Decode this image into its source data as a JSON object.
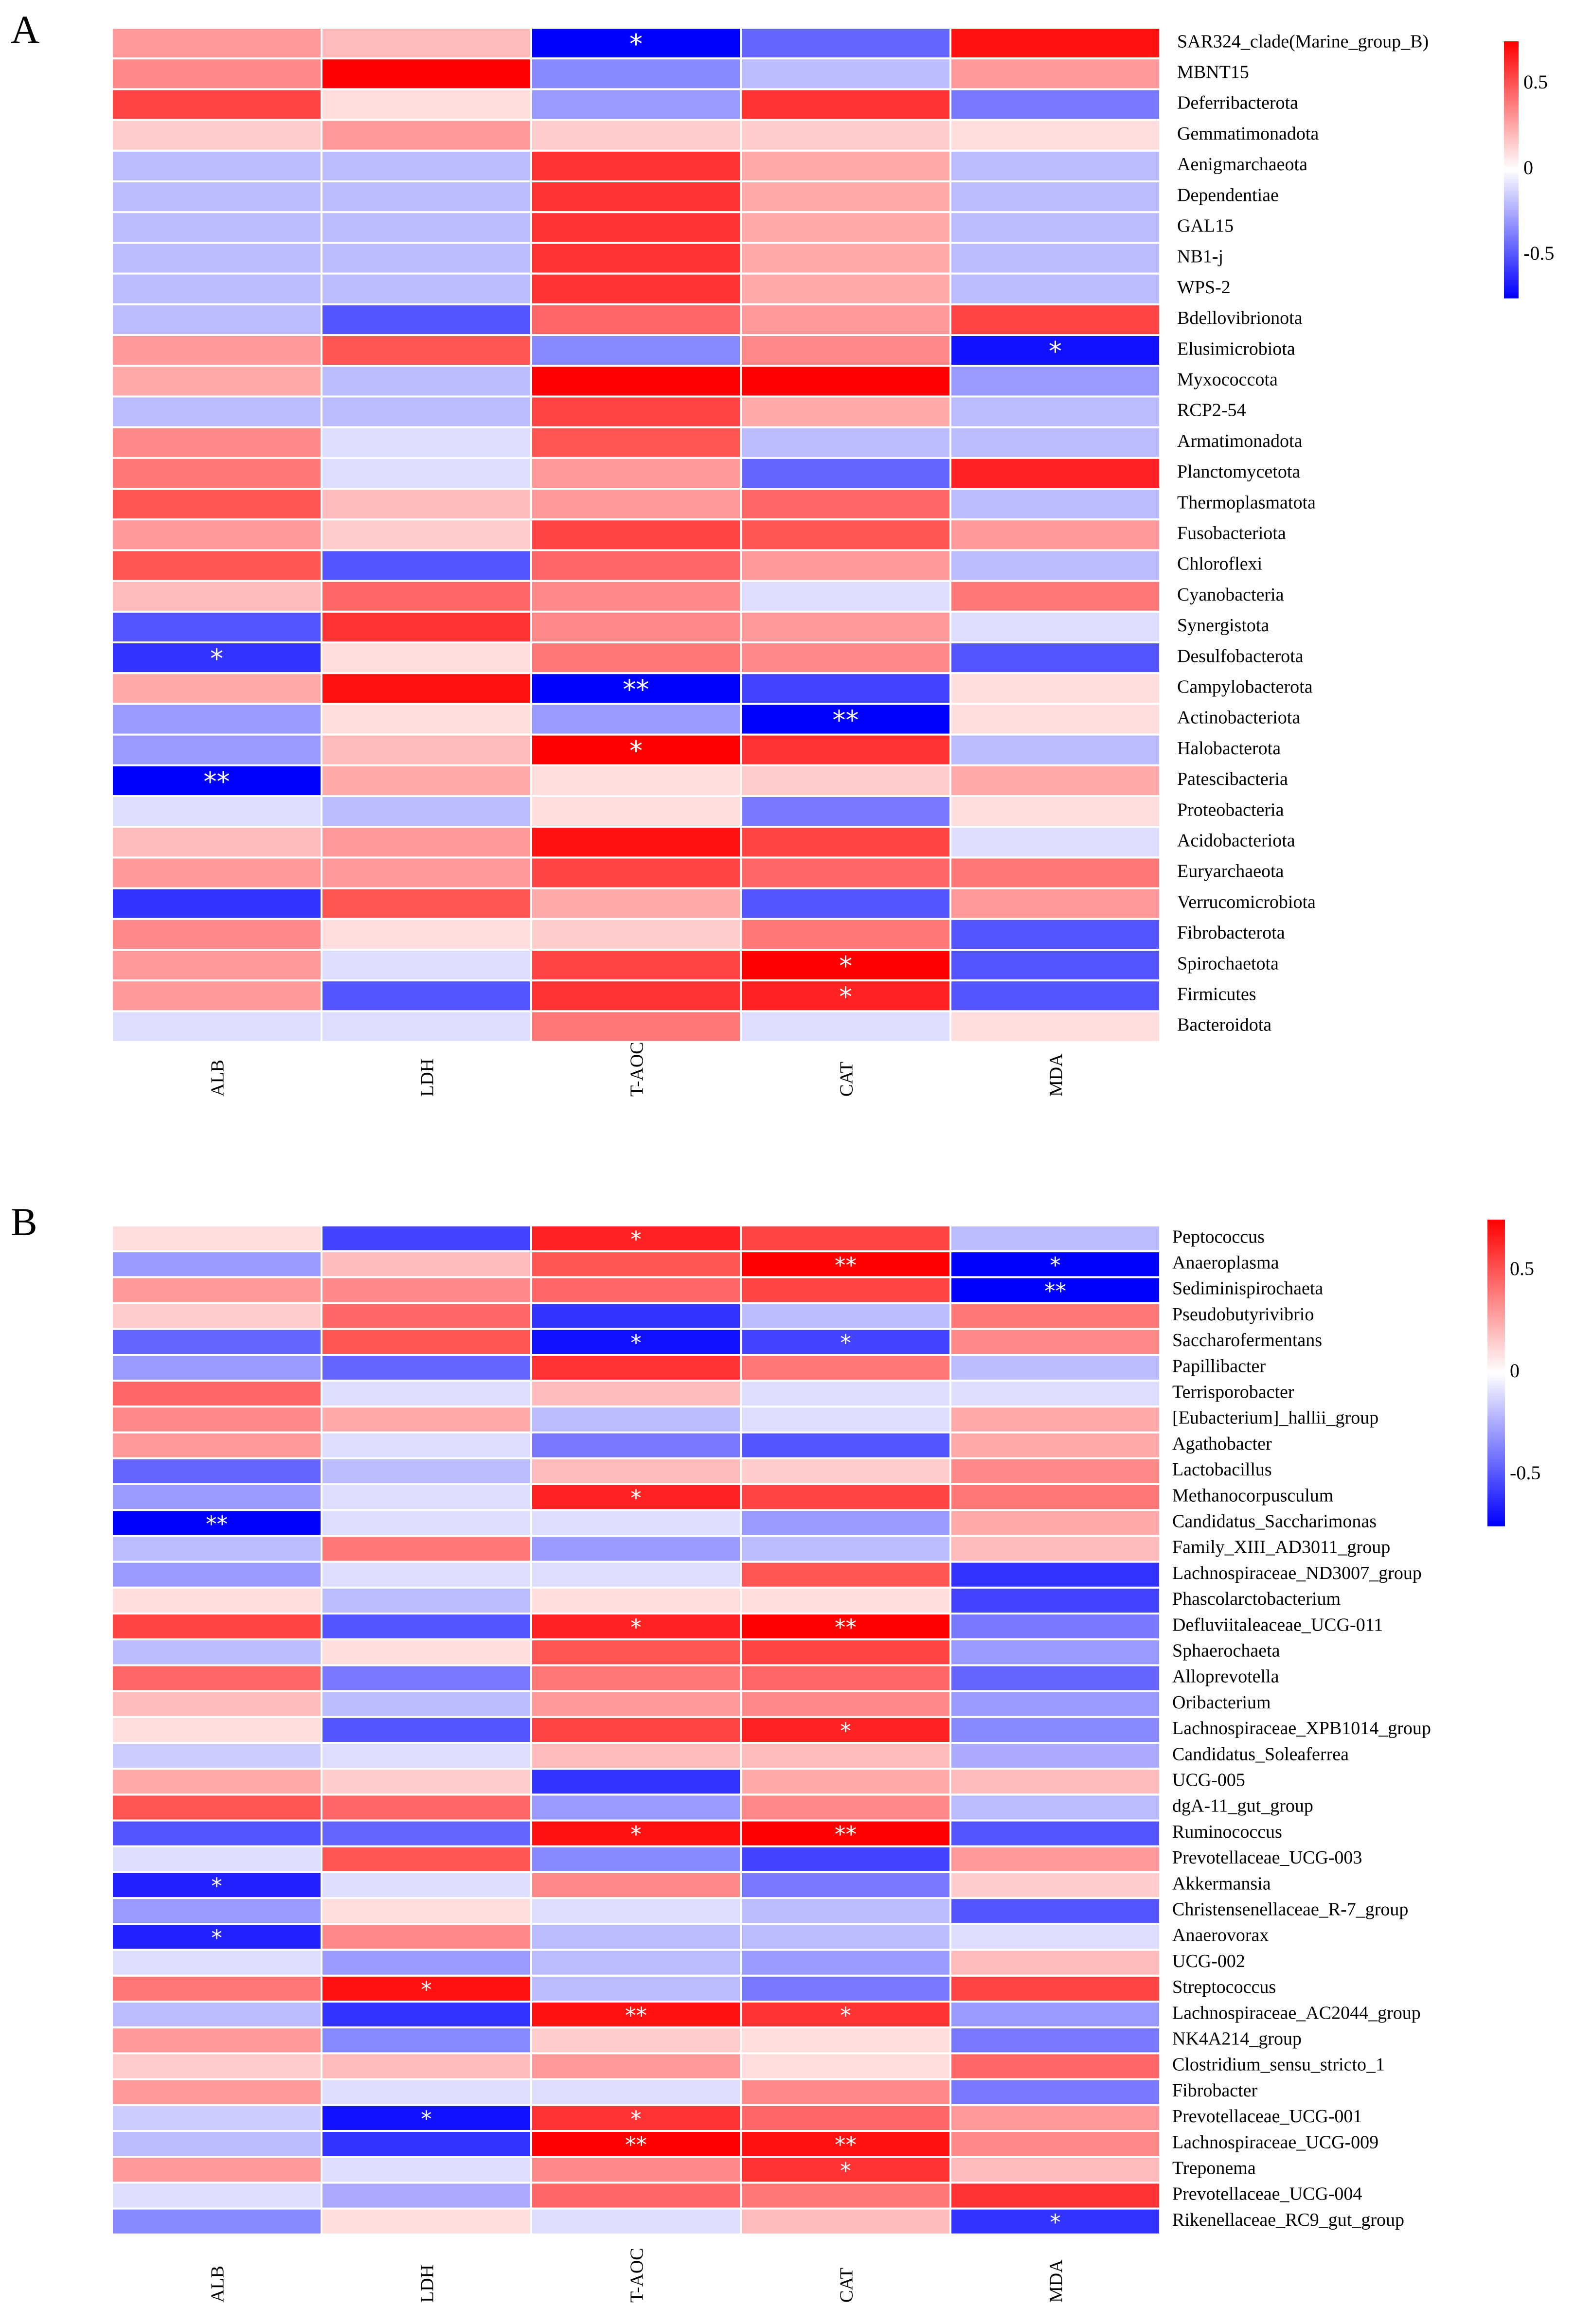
{
  "chart_data": [
    {
      "type": "heatmap",
      "panel": "A",
      "columns": [
        "ALB",
        "LDH",
        "T-AOC",
        "CAT",
        "MDA"
      ],
      "rows": [
        "SAR324_clade(Marine_group_B)",
        "MBNT15",
        "Deferribacterota",
        "Gemmatimonadota",
        "Aenigmarchaeota",
        "Dependentiae",
        "GAL15",
        "NB1-j",
        "WPS-2",
        "Bdellovibrionota",
        "Elusimicrobiota",
        "Myxococcota",
        "RCP2-54",
        "Armatimonadota",
        "Planctomycetota",
        "Thermoplasmatota",
        "Fusobacteriota",
        "Chloroflexi",
        "Cyanobacteria",
        "Synergistota",
        "Desulfobacterota",
        "Campylobacterota",
        "Actinobacteriota",
        "Halobacterota",
        "Patescibacteria",
        "Proteobacteria",
        "Acidobacteriota",
        "Euryarchaeota",
        "Verrucomicrobiota",
        "Fibrobacterota",
        "Spirochaetota",
        "Firmicutes",
        "Bacteroidota"
      ],
      "values": [
        [
          0.3,
          0.2,
          -0.75,
          -0.45,
          0.7
        ],
        [
          0.35,
          0.75,
          -0.35,
          -0.2,
          0.3
        ],
        [
          0.55,
          0.1,
          -0.3,
          0.6,
          -0.4
        ],
        [
          0.15,
          0.3,
          0.15,
          0.15,
          0.1
        ],
        [
          -0.2,
          -0.2,
          0.6,
          0.25,
          -0.2
        ],
        [
          -0.2,
          -0.2,
          0.6,
          0.25,
          -0.2
        ],
        [
          -0.2,
          -0.2,
          0.6,
          0.25,
          -0.2
        ],
        [
          -0.2,
          -0.2,
          0.6,
          0.25,
          -0.2
        ],
        [
          -0.2,
          -0.2,
          0.6,
          0.25,
          -0.2
        ],
        [
          -0.2,
          -0.5,
          0.45,
          0.3,
          0.55
        ],
        [
          0.3,
          0.5,
          -0.35,
          0.35,
          -0.7
        ],
        [
          0.25,
          -0.2,
          0.75,
          0.75,
          -0.3
        ],
        [
          -0.2,
          -0.2,
          0.55,
          0.25,
          -0.2
        ],
        [
          0.35,
          -0.1,
          0.5,
          -0.2,
          -0.2
        ],
        [
          0.4,
          -0.1,
          0.3,
          -0.45,
          0.65
        ],
        [
          0.5,
          0.2,
          0.3,
          0.45,
          -0.2
        ],
        [
          0.3,
          0.15,
          0.55,
          0.5,
          0.3
        ],
        [
          0.5,
          -0.5,
          0.45,
          0.3,
          -0.2
        ],
        [
          0.2,
          0.45,
          0.35,
          -0.1,
          0.4
        ],
        [
          -0.5,
          0.6,
          0.35,
          0.3,
          -0.1
        ],
        [
          -0.6,
          0.1,
          0.4,
          0.35,
          -0.5
        ],
        [
          0.25,
          0.7,
          -0.75,
          -0.55,
          0.1
        ],
        [
          -0.3,
          0.1,
          -0.3,
          -0.75,
          0.1
        ],
        [
          -0.3,
          0.2,
          0.75,
          0.6,
          -0.2
        ],
        [
          -0.75,
          0.25,
          0.1,
          0.15,
          0.25
        ],
        [
          -0.1,
          -0.2,
          0.1,
          -0.4,
          0.1
        ],
        [
          0.2,
          0.3,
          0.7,
          0.55,
          -0.1
        ],
        [
          0.3,
          0.3,
          0.55,
          0.45,
          0.4
        ],
        [
          -0.6,
          0.5,
          0.25,
          -0.5,
          0.3
        ],
        [
          0.35,
          0.1,
          0.15,
          0.4,
          -0.5
        ],
        [
          0.3,
          -0.1,
          0.55,
          0.75,
          -0.5
        ],
        [
          0.3,
          -0.5,
          0.6,
          0.65,
          -0.5
        ],
        [
          -0.1,
          -0.1,
          0.4,
          -0.1,
          0.1
        ]
      ],
      "significance": [
        [
          "",
          "",
          "*",
          "",
          ""
        ],
        [
          "",
          "",
          "",
          "",
          ""
        ],
        [
          "",
          "",
          "",
          "",
          ""
        ],
        [
          "",
          "",
          "",
          "",
          ""
        ],
        [
          "",
          "",
          "",
          "",
          ""
        ],
        [
          "",
          "",
          "",
          "",
          ""
        ],
        [
          "",
          "",
          "",
          "",
          ""
        ],
        [
          "",
          "",
          "",
          "",
          ""
        ],
        [
          "",
          "",
          "",
          "",
          ""
        ],
        [
          "",
          "",
          "",
          "",
          ""
        ],
        [
          "",
          "",
          "",
          "",
          "*"
        ],
        [
          "",
          "",
          "",
          "",
          ""
        ],
        [
          "",
          "",
          "",
          "",
          ""
        ],
        [
          "",
          "",
          "",
          "",
          ""
        ],
        [
          "",
          "",
          "",
          "",
          ""
        ],
        [
          "",
          "",
          "",
          "",
          ""
        ],
        [
          "",
          "",
          "",
          "",
          ""
        ],
        [
          "",
          "",
          "",
          "",
          ""
        ],
        [
          "",
          "",
          "",
          "",
          ""
        ],
        [
          "",
          "",
          "",
          "",
          ""
        ],
        [
          "*",
          "",
          "",
          "",
          ""
        ],
        [
          "",
          "",
          "**",
          "",
          ""
        ],
        [
          "",
          "",
          "",
          "**",
          ""
        ],
        [
          "",
          "",
          "*",
          "",
          ""
        ],
        [
          "**",
          "",
          "",
          "",
          ""
        ],
        [
          "",
          "",
          "",
          "",
          ""
        ],
        [
          "",
          "",
          "",
          "",
          ""
        ],
        [
          "",
          "",
          "",
          "",
          ""
        ],
        [
          "",
          "",
          "",
          "",
          ""
        ],
        [
          "",
          "",
          "",
          "",
          ""
        ],
        [
          "",
          "",
          "",
          "*",
          ""
        ],
        [
          "",
          "",
          "",
          "*",
          ""
        ],
        [
          "",
          "",
          "",
          "",
          ""
        ]
      ],
      "colorbar": {
        "range": [
          -0.75,
          0.75
        ],
        "ticks": [
          "0.5",
          "0",
          "-0.5"
        ],
        "tick_values": [
          0.5,
          0,
          -0.5
        ],
        "colors": [
          "#0000ff",
          "#ffffff",
          "#ff0000"
        ]
      }
    },
    {
      "type": "heatmap",
      "panel": "B",
      "columns": [
        "ALB",
        "LDH",
        "T-AOC",
        "CAT",
        "MDA"
      ],
      "rows": [
        "Peptococcus",
        "Anaeroplasma",
        "Sediminispirochaeta",
        "Pseudobutyrivibrio",
        "Saccharofermentans",
        "Papillibacter",
        "Terrisporobacter",
        "[Eubacterium]_hallii_group",
        "Agathobacter",
        "Lactobacillus",
        "Methanocorpusculum",
        "Candidatus_Saccharimonas",
        "Family_XIII_AD3011_group",
        "Lachnospiraceae_ND3007_group",
        "Phascolarctobacterium",
        "Defluviitaleaceae_UCG-011",
        "Sphaerochaeta",
        "Alloprevotella",
        "Oribacterium",
        "Lachnospiraceae_XPB1014_group",
        "Candidatus_Soleaferrea",
        "UCG-005",
        "dgA-11_gut_group",
        "Ruminococcus",
        "Prevotellaceae_UCG-003",
        "Akkermansia",
        "Christensenellaceae_R-7_group",
        "Anaerovorax",
        "UCG-002",
        "Streptococcus",
        "Lachnospiraceae_AC2044_group",
        "NK4A214_group",
        "Clostridium_sensu_stricto_1",
        "Fibrobacter",
        "Prevotellaceae_UCG-001",
        "Lachnospiraceae_UCG-009",
        "Treponema",
        "Prevotellaceae_UCG-004",
        "Rikenellaceae_RC9_gut_group"
      ],
      "values": [
        [
          0.1,
          -0.55,
          0.65,
          0.55,
          -0.2
        ],
        [
          -0.3,
          0.2,
          0.5,
          0.75,
          -0.75
        ],
        [
          0.3,
          0.35,
          0.45,
          0.55,
          -0.75
        ],
        [
          0.15,
          0.45,
          -0.6,
          -0.2,
          0.4
        ],
        [
          -0.45,
          0.5,
          -0.7,
          -0.55,
          0.35
        ],
        [
          -0.3,
          -0.45,
          0.6,
          0.4,
          -0.2
        ],
        [
          0.45,
          -0.1,
          0.2,
          -0.1,
          -0.1
        ],
        [
          0.35,
          0.25,
          -0.2,
          -0.1,
          0.25
        ],
        [
          0.3,
          -0.1,
          -0.4,
          -0.5,
          0.25
        ],
        [
          -0.45,
          -0.2,
          0.2,
          0.15,
          0.35
        ],
        [
          -0.3,
          -0.1,
          0.65,
          0.55,
          0.4
        ],
        [
          -0.75,
          -0.1,
          -0.1,
          -0.3,
          0.25
        ],
        [
          -0.2,
          0.4,
          -0.3,
          -0.2,
          0.2
        ],
        [
          -0.3,
          -0.1,
          -0.1,
          0.5,
          -0.6
        ],
        [
          0.1,
          -0.2,
          0.1,
          0.1,
          -0.55
        ],
        [
          0.55,
          -0.5,
          0.65,
          0.75,
          -0.4
        ],
        [
          -0.2,
          0.1,
          0.5,
          0.55,
          -0.3
        ],
        [
          0.45,
          -0.4,
          0.4,
          0.45,
          -0.45
        ],
        [
          0.2,
          -0.2,
          0.3,
          0.35,
          -0.3
        ],
        [
          0.1,
          -0.5,
          0.55,
          0.65,
          -0.35
        ],
        [
          -0.15,
          -0.1,
          0.2,
          0.2,
          -0.25
        ],
        [
          0.25,
          0.15,
          -0.6,
          0.25,
          0.2
        ],
        [
          0.5,
          0.45,
          -0.3,
          0.35,
          -0.2
        ],
        [
          -0.5,
          -0.45,
          0.7,
          0.75,
          -0.5
        ],
        [
          -0.1,
          0.5,
          -0.35,
          -0.55,
          0.3
        ],
        [
          -0.65,
          -0.1,
          0.35,
          -0.4,
          0.15
        ],
        [
          -0.3,
          0.1,
          -0.1,
          -0.2,
          -0.5
        ],
        [
          -0.65,
          0.35,
          -0.2,
          -0.2,
          -0.1
        ],
        [
          -0.1,
          -0.3,
          -0.2,
          -0.3,
          0.2
        ],
        [
          0.4,
          0.7,
          -0.2,
          -0.4,
          0.55
        ],
        [
          -0.2,
          -0.6,
          0.7,
          0.6,
          -0.3
        ],
        [
          0.3,
          -0.35,
          0.15,
          0.1,
          -0.4
        ],
        [
          0.15,
          0.2,
          0.3,
          0.1,
          0.45
        ],
        [
          0.3,
          -0.1,
          -0.1,
          0.35,
          -0.4
        ],
        [
          -0.15,
          -0.7,
          0.6,
          0.45,
          0.3
        ],
        [
          -0.2,
          -0.6,
          0.75,
          0.7,
          0.35
        ],
        [
          0.3,
          -0.1,
          0.35,
          0.6,
          0.2
        ],
        [
          -0.1,
          -0.25,
          0.45,
          0.4,
          0.6
        ],
        [
          -0.35,
          0.1,
          -0.1,
          0.2,
          -0.6
        ]
      ],
      "significance": [
        [
          "",
          "",
          "*",
          "",
          ""
        ],
        [
          "",
          "",
          "",
          "**",
          "*"
        ],
        [
          "",
          "",
          "",
          "",
          "**"
        ],
        [
          "",
          "",
          "",
          "",
          ""
        ],
        [
          "",
          "",
          "*",
          "*",
          ""
        ],
        [
          "",
          "",
          "",
          "",
          ""
        ],
        [
          "",
          "",
          "",
          "",
          ""
        ],
        [
          "",
          "",
          "",
          "",
          ""
        ],
        [
          "",
          "",
          "",
          "",
          ""
        ],
        [
          "",
          "",
          "",
          "",
          ""
        ],
        [
          "",
          "",
          "*",
          "",
          ""
        ],
        [
          "**",
          "",
          "",
          "",
          ""
        ],
        [
          "",
          "",
          "",
          "",
          ""
        ],
        [
          "",
          "",
          "",
          "",
          ""
        ],
        [
          "",
          "",
          "",
          "",
          ""
        ],
        [
          "",
          "",
          "*",
          "**",
          ""
        ],
        [
          "",
          "",
          "",
          "",
          ""
        ],
        [
          "",
          "",
          "",
          "",
          ""
        ],
        [
          "",
          "",
          "",
          "",
          ""
        ],
        [
          "",
          "",
          "",
          "*",
          ""
        ],
        [
          "",
          "",
          "",
          "",
          ""
        ],
        [
          "",
          "",
          "",
          "",
          ""
        ],
        [
          "",
          "",
          "",
          "",
          ""
        ],
        [
          "",
          "",
          "*",
          "**",
          ""
        ],
        [
          "",
          "",
          "",
          "",
          ""
        ],
        [
          "*",
          "",
          "",
          "",
          ""
        ],
        [
          "",
          "",
          "",
          "",
          ""
        ],
        [
          "*",
          "",
          "",
          "",
          ""
        ],
        [
          "",
          "",
          "",
          "",
          ""
        ],
        [
          "",
          "*",
          "",
          "",
          ""
        ],
        [
          "",
          "",
          "**",
          "*",
          ""
        ],
        [
          "",
          "",
          "",
          "",
          ""
        ],
        [
          "",
          "",
          "",
          "",
          ""
        ],
        [
          "",
          "",
          "",
          "",
          ""
        ],
        [
          "",
          "*",
          "*",
          "",
          ""
        ],
        [
          "",
          "",
          "**",
          "**",
          ""
        ],
        [
          "",
          "",
          "",
          "*",
          ""
        ],
        [
          "",
          "",
          "",
          "",
          ""
        ],
        [
          "",
          "",
          "",
          "",
          "*"
        ]
      ],
      "colorbar": {
        "range": [
          -0.75,
          0.75
        ],
        "ticks": [
          "0.5",
          "0",
          "-0.5"
        ],
        "tick_values": [
          0.5,
          0,
          -0.5
        ],
        "colors": [
          "#0000ff",
          "#ffffff",
          "#ff0000"
        ]
      }
    }
  ]
}
